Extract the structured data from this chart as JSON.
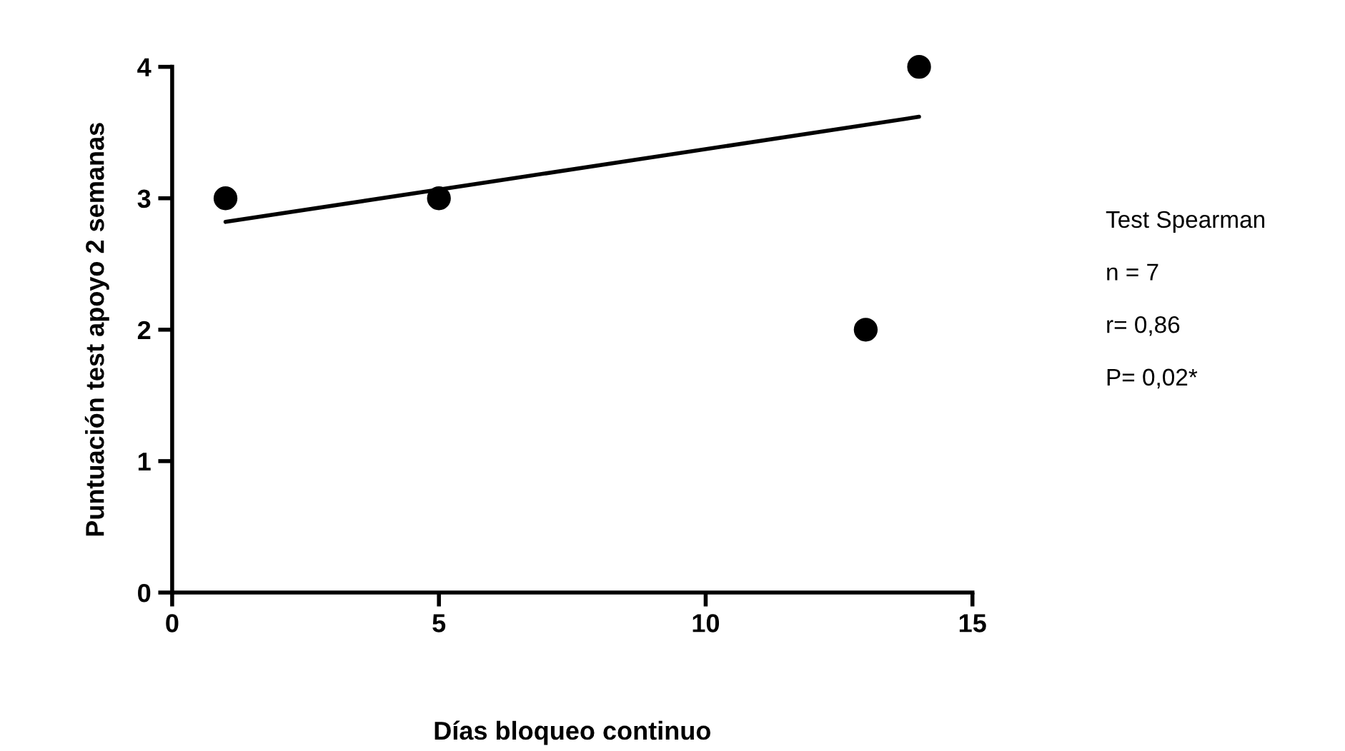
{
  "chart_data": {
    "type": "scatter",
    "xlabel": "Días bloqueo continuo",
    "ylabel": "Puntuación test apoyo 2 semanas",
    "xlim": [
      0,
      15
    ],
    "xticks": [
      0,
      5,
      10,
      15
    ],
    "ylim": [
      0,
      4
    ],
    "yticks": [
      0,
      1,
      2,
      3,
      4
    ],
    "grid": false,
    "series": [
      {
        "color": "#000000",
        "x": [
          1,
          5,
          13,
          14
        ],
        "values": [
          3,
          3,
          2,
          4
        ],
        "marker": "circle"
      },
      {
        "type": "line",
        "color": "#000000",
        "x": [
          1,
          14
        ],
        "values": [
          2.82,
          3.62
        ],
        "line_style": "solid"
      }
    ],
    "annotations": [
      "Test Spearman",
      "n = 7",
      "r= 0,86",
      "P= 0,02*"
    ]
  }
}
